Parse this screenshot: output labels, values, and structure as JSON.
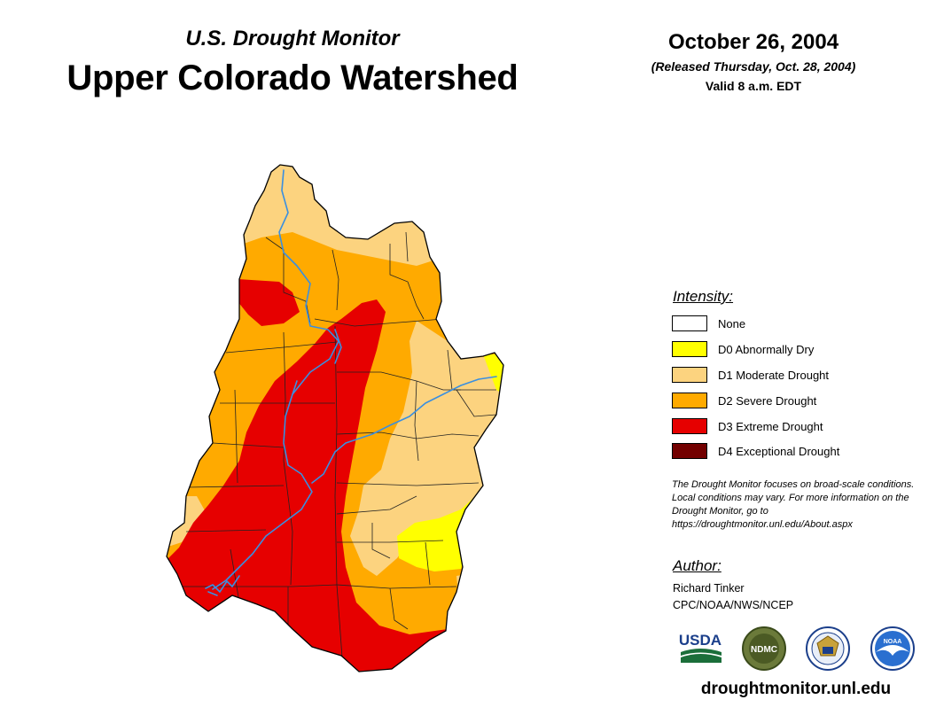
{
  "header": {
    "subtitle": "U.S. Drought Monitor",
    "title": "Upper Colorado Watershed",
    "date": "October 26, 2004",
    "released": "(Released Thursday, Oct. 28, 2004)",
    "valid": "Valid 8 a.m. EDT"
  },
  "legend": {
    "heading": "Intensity:",
    "items": [
      {
        "label": "None",
        "color": "#ffffff"
      },
      {
        "label": "D0 Abnormally Dry",
        "color": "#ffff00"
      },
      {
        "label": "D1 Moderate Drought",
        "color": "#fcd37f"
      },
      {
        "label": "D2 Severe Drought",
        "color": "#ffaa00"
      },
      {
        "label": "D3 Extreme Drought",
        "color": "#e60000"
      },
      {
        "label": "D4 Exceptional Drought",
        "color": "#730000"
      }
    ]
  },
  "note": "The Drought Monitor focuses on broad-scale conditions. Local conditions may vary. For more information on the Drought Monitor, go to https://droughtmonitor.unl.edu/About.aspx",
  "author": {
    "heading": "Author:",
    "name": "Richard Tinker",
    "org": "CPC/NOAA/NWS/NCEP"
  },
  "logos": {
    "usda": "USDA",
    "ndmc": "NDMC",
    "noaa": "NOAA"
  },
  "website": "droughtmonitor.unl.edu",
  "map": {
    "region": "Upper Colorado Watershed",
    "river_color": "#3a8fe0"
  }
}
